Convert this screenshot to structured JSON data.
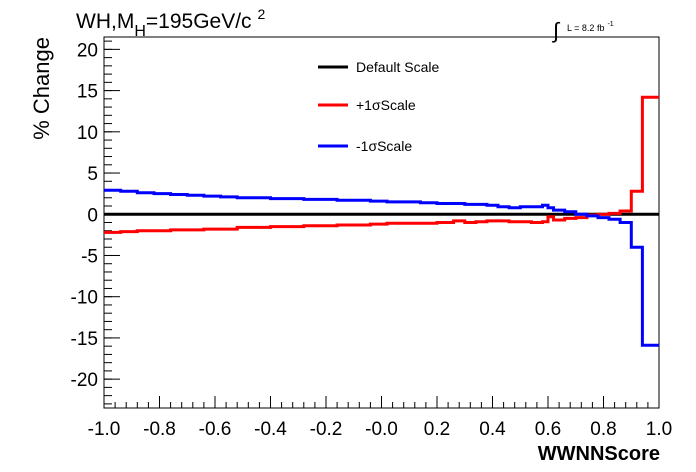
{
  "chart_data": {
    "type": "line",
    "title_main": "WH,M",
    "title_sub": "H",
    "title_rest": "=195GeV/c",
    "title_sup": "2",
    "lumi_text": "L = 8.2 fb",
    "lumi_sup": "-1",
    "integral_symbol": "∫",
    "xlabel": "WWNNScore",
    "ylabel": "% Change",
    "xlim": [
      -1.0,
      1.0
    ],
    "ylim": [
      -23.5,
      21.5
    ],
    "xticks": [
      "-1.0",
      "-0.8",
      "-0.6",
      "-0.4",
      "-0.2",
      "-0.0",
      "0.2",
      "0.4",
      "0.6",
      "0.8",
      "1.0"
    ],
    "xtick_values": [
      -1.0,
      -0.8,
      -0.6,
      -0.4,
      -0.2,
      0.0,
      0.2,
      0.4,
      0.6,
      0.8,
      1.0
    ],
    "yticks": [
      "20",
      "15",
      "10",
      "5",
      "0",
      "-5",
      "-10",
      "-15",
      "-20"
    ],
    "ytick_values": [
      20,
      15,
      10,
      5,
      0,
      -5,
      -10,
      -15,
      -20
    ],
    "legend_position": "top-center",
    "legend": [
      {
        "name": "Default Scale",
        "color": "#000000"
      },
      {
        "name": "+1σScale",
        "color": "#ff0000"
      },
      {
        "name": "-1σScale",
        "color": "#0000ff"
      }
    ],
    "bin_edges": [
      -1.0,
      -0.94,
      -0.88,
      -0.82,
      -0.76,
      -0.7,
      -0.64,
      -0.58,
      -0.52,
      -0.46,
      -0.4,
      -0.34,
      -0.28,
      -0.22,
      -0.16,
      -0.1,
      -0.04,
      0.02,
      0.08,
      0.14,
      0.2,
      0.26,
      0.3,
      0.34,
      0.38,
      0.42,
      0.46,
      0.5,
      0.54,
      0.58,
      0.6,
      0.62,
      0.66,
      0.7,
      0.74,
      0.78,
      0.82,
      0.86,
      0.9,
      0.94,
      1.0
    ],
    "series": [
      {
        "name": "Default Scale",
        "color": "#000000",
        "values": [
          0,
          0,
          0,
          0,
          0,
          0,
          0,
          0,
          0,
          0,
          0,
          0,
          0,
          0,
          0,
          0,
          0,
          0,
          0,
          0,
          0,
          0,
          0,
          0,
          0,
          0,
          0,
          0,
          0,
          0,
          0,
          0,
          0,
          0,
          0,
          0,
          0,
          0,
          0,
          0
        ]
      },
      {
        "name": "+1σScale",
        "color": "#ff0000",
        "values": [
          -2.2,
          -2.1,
          -2.0,
          -2.0,
          -1.9,
          -1.9,
          -1.8,
          -1.8,
          -1.6,
          -1.6,
          -1.5,
          -1.5,
          -1.4,
          -1.4,
          -1.3,
          -1.3,
          -1.2,
          -1.1,
          -1.1,
          -1.1,
          -1.0,
          -0.8,
          -1.0,
          -0.9,
          -0.8,
          -0.8,
          -0.9,
          -0.9,
          -1.0,
          -0.9,
          -0.3,
          -0.7,
          -0.5,
          -0.4,
          -0.1,
          0.0,
          0.1,
          0.4,
          2.8,
          14.2
        ]
      },
      {
        "name": "-1σScale",
        "color": "#0000ff",
        "values": [
          2.9,
          2.8,
          2.6,
          2.5,
          2.4,
          2.3,
          2.2,
          2.1,
          2.0,
          2.0,
          1.9,
          1.9,
          1.8,
          1.8,
          1.7,
          1.7,
          1.6,
          1.5,
          1.5,
          1.4,
          1.3,
          1.3,
          1.2,
          1.2,
          1.1,
          0.9,
          0.8,
          0.9,
          0.9,
          1.1,
          0.8,
          0.5,
          0.3,
          0.0,
          -0.2,
          -0.4,
          -0.6,
          -1.0,
          -4.0,
          -15.9
        ]
      }
    ]
  }
}
